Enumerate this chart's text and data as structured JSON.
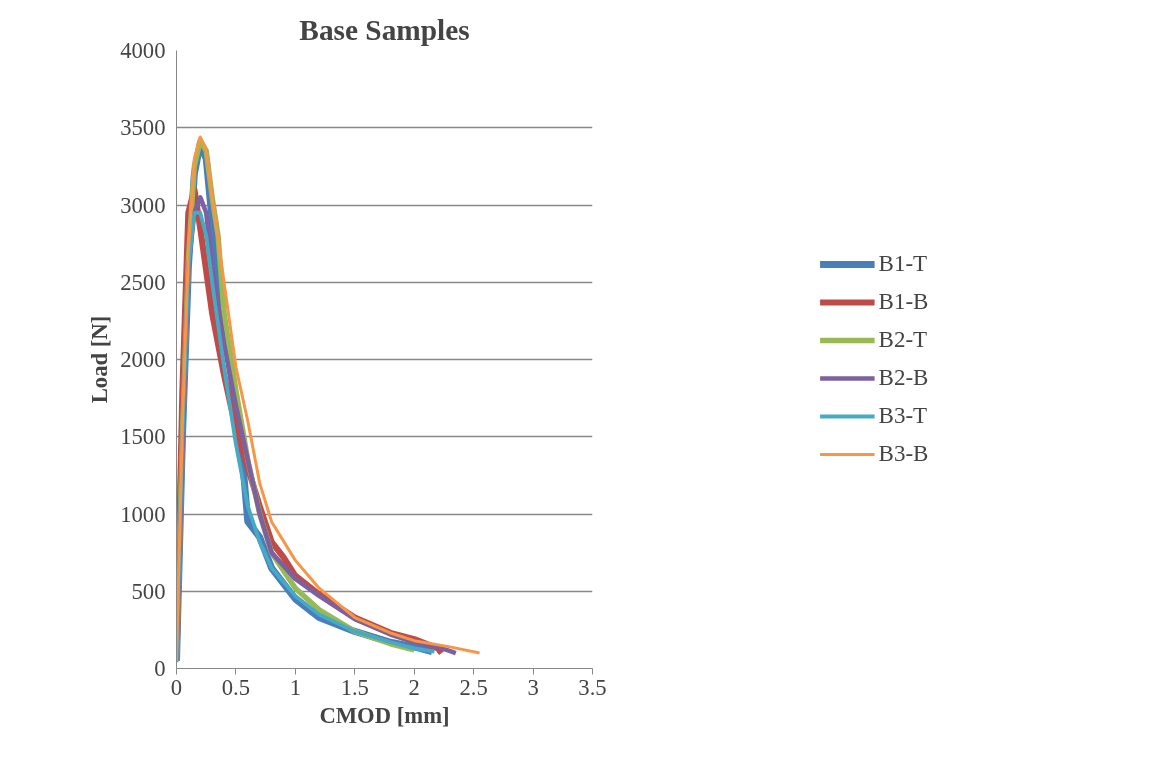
{
  "chart_data": {
    "type": "line",
    "title": "Base Samples",
    "xlabel": "CMOD [mm]",
    "ylabel": "Load [N]",
    "xlim": [
      0,
      3.5
    ],
    "xticks": [
      0,
      0.5,
      1,
      1.5,
      2,
      2.5,
      3,
      3.5
    ],
    "ylim": [
      0,
      4000
    ],
    "yticks": [
      0,
      500,
      1000,
      1500,
      2000,
      2500,
      3000,
      3500,
      4000
    ],
    "grid": "y",
    "legend": "right",
    "marker": "none",
    "line_style": "solid",
    "series": [
      {
        "name": "B1-T",
        "color": "#4a7ebb",
        "x": [
          0,
          0.05,
          0.1,
          0.15,
          0.2,
          0.25,
          0.3,
          0.4,
          0.5,
          0.55,
          0.6,
          0.7,
          0.8,
          1.0,
          1.2,
          1.5,
          1.8,
          2.0,
          2.15
        ],
        "values": [
          50,
          1500,
          2600,
          3200,
          3400,
          3300,
          2900,
          2200,
          1700,
          1400,
          950,
          850,
          650,
          450,
          330,
          240,
          170,
          140,
          110
        ]
      },
      {
        "name": "B1-B",
        "color": "#be4b48",
        "x": [
          0,
          0.05,
          0.1,
          0.15,
          0.2,
          0.3,
          0.4,
          0.5,
          0.6,
          0.7,
          0.8,
          0.9,
          1.0,
          1.2,
          1.5,
          1.8,
          2.0,
          2.2,
          2.23
        ],
        "values": [
          50,
          1800,
          2950,
          3100,
          2850,
          2300,
          1900,
          1550,
          1300,
          1050,
          820,
          720,
          600,
          480,
          330,
          230,
          190,
          130,
          100
        ]
      },
      {
        "name": "B2-T",
        "color": "#98b954",
        "x": [
          0,
          0.05,
          0.1,
          0.15,
          0.2,
          0.25,
          0.3,
          0.35,
          0.4,
          0.5,
          0.6,
          0.7,
          0.8,
          1.0,
          1.2,
          1.5,
          1.8,
          2.0
        ],
        "values": [
          50,
          1500,
          2650,
          3250,
          3420,
          3350,
          3050,
          2800,
          2300,
          1800,
          1350,
          1000,
          750,
          520,
          380,
          240,
          160,
          120
        ]
      },
      {
        "name": "B2-B",
        "color": "#7d60a0",
        "x": [
          0,
          0.05,
          0.1,
          0.15,
          0.2,
          0.25,
          0.3,
          0.4,
          0.5,
          0.6,
          0.7,
          0.8,
          1.0,
          1.2,
          1.5,
          1.8,
          2.0,
          2.2,
          2.35
        ],
        "values": [
          50,
          1400,
          2600,
          2950,
          3050,
          2950,
          2600,
          2100,
          1700,
          1350,
          1000,
          750,
          580,
          470,
          320,
          220,
          170,
          140,
          100
        ]
      },
      {
        "name": "B3-T",
        "color": "#46aac5",
        "x": [
          0,
          0.05,
          0.1,
          0.15,
          0.2,
          0.25,
          0.3,
          0.4,
          0.5,
          0.6,
          0.7,
          0.8,
          1.0,
          1.2,
          1.5,
          1.8,
          2.0,
          2.17
        ],
        "values": [
          40,
          1500,
          2600,
          2950,
          2950,
          2800,
          2500,
          1950,
          1450,
          1050,
          820,
          650,
          470,
          350,
          240,
          170,
          130,
          110
        ]
      },
      {
        "name": "B3-B",
        "color": "#f79646",
        "x": [
          0,
          0.05,
          0.1,
          0.15,
          0.2,
          0.25,
          0.3,
          0.4,
          0.5,
          0.6,
          0.7,
          0.8,
          1.0,
          1.2,
          1.5,
          1.8,
          2.0,
          2.3,
          2.55
        ],
        "values": [
          50,
          1600,
          2700,
          3300,
          3440,
          3350,
          3050,
          2500,
          1950,
          1600,
          1200,
          950,
          700,
          520,
          330,
          230,
          180,
          140,
          100
        ]
      }
    ]
  }
}
